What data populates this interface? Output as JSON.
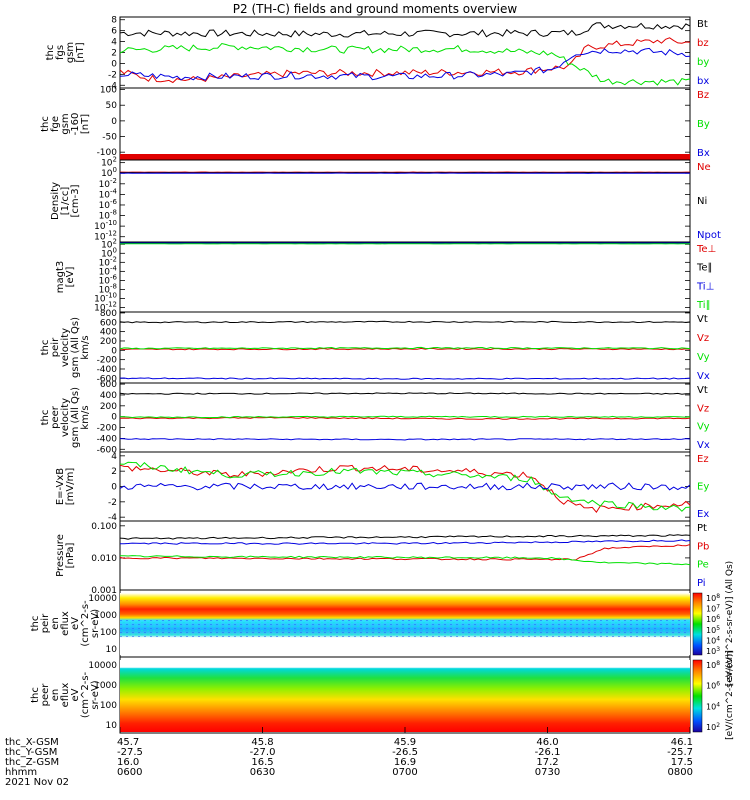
{
  "title": "P2 (TH-C) fields and ground moments overview",
  "colors": {
    "black": "#000000",
    "red": "#e00000",
    "green": "#00e000",
    "blue": "#0000e0"
  },
  "chart_data": [
    {
      "type": "line",
      "ylabel": [
        "thc",
        "fgs",
        "gsm",
        "[nT]"
      ],
      "scale": "linear",
      "yticks": [
        "-4",
        "-2",
        "0",
        "2",
        "4",
        "6",
        "8"
      ],
      "ylim": [
        -4.5,
        8.5
      ],
      "series": [
        {
          "name": "Bt",
          "color": "black",
          "segments": [
            [
              0,
              5.6
            ],
            [
              0.35,
              5.4
            ],
            [
              0.8,
              5.6
            ],
            [
              0.83,
              7
            ],
            [
              1,
              6.9
            ]
          ]
        },
        {
          "name": "bz",
          "color": "red",
          "segments": [
            [
              0,
              -1.5
            ],
            [
              0.05,
              -2.7
            ],
            [
              0.12,
              -3
            ],
            [
              0.3,
              -1.8
            ],
            [
              0.5,
              -1.7
            ],
            [
              0.7,
              -1.5
            ],
            [
              0.79,
              -0.5
            ],
            [
              0.82,
              3
            ],
            [
              0.95,
              4.2
            ],
            [
              1,
              3.8
            ]
          ]
        },
        {
          "name": "by",
          "color": "green",
          "segments": [
            [
              0,
              2.4
            ],
            [
              0.2,
              3.1
            ],
            [
              0.4,
              2.5
            ],
            [
              0.6,
              2.7
            ],
            [
              0.76,
              1.8
            ],
            [
              0.8,
              -0.5
            ],
            [
              0.85,
              -3.2
            ],
            [
              1,
              -3.4
            ]
          ]
        },
        {
          "name": "bx",
          "color": "blue",
          "segments": [
            [
              0,
              -2
            ],
            [
              0.1,
              -2.5
            ],
            [
              0.3,
              -2.2
            ],
            [
              0.5,
              -2.4
            ],
            [
              0.68,
              -2
            ],
            [
              0.76,
              -1
            ],
            [
              0.8,
              2
            ],
            [
              0.86,
              2.5
            ],
            [
              1,
              1.8
            ]
          ]
        }
      ]
    },
    {
      "type": "line",
      "ylabel": [
        "thc",
        "fge",
        "gsm",
        "-160",
        "[nT]"
      ],
      "scale": "linear",
      "yticks": [
        "100",
        "50",
        "0",
        "-50",
        "-100"
      ],
      "ylim": [
        -125,
        105
      ],
      "series": [
        {
          "name": "Bz",
          "color": "red",
          "segments": []
        },
        {
          "name": "By",
          "color": "green",
          "segments": []
        },
        {
          "name": "Bx",
          "color": "blue",
          "segments": []
        }
      ]
    },
    {
      "type": "line",
      "ylabel": [
        "Density",
        "[1/cc]",
        "[cm-3]"
      ],
      "scale": "log",
      "yticks": [
        "10^2",
        "10^0",
        "10^-2",
        "10^-4",
        "10^-6",
        "10^-8",
        "10^-10",
        "10^-12"
      ],
      "ylim": [
        -13,
        2.5
      ],
      "series": [
        {
          "name": "Ne",
          "color": "red",
          "segments": [
            [
              0,
              0.2
            ],
            [
              1,
              0.2
            ]
          ]
        },
        {
          "name": "Ni",
          "color": "black",
          "segments": [
            [
              0,
              0.1
            ],
            [
              1,
              0.1
            ]
          ]
        },
        {
          "name": "Npot",
          "color": "blue",
          "segments": [
            [
              0,
              0
            ],
            [
              1,
              0
            ]
          ]
        }
      ]
    },
    {
      "type": "line",
      "ylabel": [
        "magt3",
        "[eV]"
      ],
      "scale": "log",
      "yticks": [
        "10^2",
        "10^0",
        "10^-2",
        "10^-4",
        "10^-6",
        "10^-8",
        "10^-10",
        "10^-12"
      ],
      "ylim": [
        -13,
        2.5
      ],
      "series": [
        {
          "name": "Te⊥",
          "color": "red",
          "segments": [
            [
              0,
              2.2
            ],
            [
              1,
              2.2
            ]
          ]
        },
        {
          "name": "Te∥",
          "color": "black",
          "segments": [
            [
              0,
              2.3
            ],
            [
              1,
              2.3
            ]
          ]
        },
        {
          "name": "Ti⊥",
          "color": "blue",
          "segments": [
            [
              0,
              2.4
            ],
            [
              1,
              2.4
            ]
          ]
        },
        {
          "name": "Ti∥",
          "color": "green",
          "segments": [
            [
              0,
              2.1
            ],
            [
              1,
              2.1
            ]
          ]
        }
      ]
    },
    {
      "type": "line",
      "ylabel": [
        "thc",
        "peir",
        "velocity",
        "gsm (All Qs)",
        "km/s"
      ],
      "scale": "linear",
      "yticks": [
        "800",
        "600",
        "400",
        "200",
        "0",
        "-200",
        "-400",
        "-600"
      ],
      "ylim": [
        -700,
        820
      ],
      "series": [
        {
          "name": "Vt",
          "color": "black",
          "segments": [
            [
              0,
              600
            ],
            [
              0.5,
              610
            ],
            [
              1,
              605
            ]
          ]
        },
        {
          "name": "Vz",
          "color": "red",
          "segments": [
            [
              0,
              20
            ],
            [
              0.5,
              30
            ],
            [
              1,
              25
            ]
          ]
        },
        {
          "name": "Vy",
          "color": "green",
          "segments": [
            [
              0,
              40
            ],
            [
              0.5,
              50
            ],
            [
              1,
              45
            ]
          ]
        },
        {
          "name": "Vx",
          "color": "blue",
          "segments": [
            [
              0,
              -600
            ],
            [
              0.5,
              -610
            ],
            [
              1,
              -605
            ]
          ]
        }
      ]
    },
    {
      "type": "line",
      "ylabel": [
        "thc",
        "peer",
        "velocity",
        "gsm (All Qs)",
        "km/s"
      ],
      "scale": "linear",
      "yticks": [
        "600",
        "400",
        "200",
        "0",
        "-200",
        "-400",
        "-600"
      ],
      "ylim": [
        -650,
        620
      ],
      "series": [
        {
          "name": "Vt",
          "color": "black",
          "segments": [
            [
              0,
              420
            ],
            [
              0.5,
              430
            ],
            [
              1,
              420
            ]
          ]
        },
        {
          "name": "Vz",
          "color": "red",
          "segments": [
            [
              0,
              -30
            ],
            [
              0.3,
              -20
            ],
            [
              0.6,
              -40
            ],
            [
              1,
              -30
            ]
          ]
        },
        {
          "name": "Vy",
          "color": "green",
          "segments": [
            [
              0,
              -10
            ],
            [
              0.5,
              0
            ],
            [
              1,
              -5
            ]
          ]
        },
        {
          "name": "Vx",
          "color": "blue",
          "segments": [
            [
              0,
              -410
            ],
            [
              0.5,
              -420
            ],
            [
              1,
              -410
            ]
          ]
        }
      ]
    },
    {
      "type": "line",
      "ylabel": [
        "E=-VxB",
        "[mV/m]"
      ],
      "scale": "linear",
      "yticks": [
        "4",
        "2",
        "0",
        "-2",
        "-4"
      ],
      "ylim": [
        -4.5,
        4.5
      ],
      "series": [
        {
          "name": "Ez",
          "color": "red",
          "segments": [
            [
              0,
              2.5
            ],
            [
              0.2,
              1.5
            ],
            [
              0.4,
              2.5
            ],
            [
              0.6,
              2
            ],
            [
              0.72,
              1.5
            ],
            [
              0.78,
              -2
            ],
            [
              0.82,
              -3
            ],
            [
              1,
              -2.2
            ]
          ]
        },
        {
          "name": "Ey",
          "color": "green",
          "segments": [
            [
              0,
              3
            ],
            [
              0.2,
              1.5
            ],
            [
              0.4,
              2
            ],
            [
              0.6,
              1.5
            ],
            [
              0.72,
              1
            ],
            [
              0.76,
              -1
            ],
            [
              0.82,
              -2
            ],
            [
              1,
              -3
            ]
          ]
        },
        {
          "name": "Ex",
          "color": "blue",
          "segments": [
            [
              0,
              0
            ],
            [
              1,
              0
            ]
          ]
        }
      ]
    },
    {
      "type": "line",
      "ylabel": [
        "Pressure",
        "[nPa]"
      ],
      "scale": "log",
      "yticks": [
        "0.100",
        "0.010",
        "0.001"
      ],
      "ylim": [
        -3,
        -0.85
      ],
      "series": [
        {
          "name": "Pt",
          "color": "black",
          "segments": [
            [
              0,
              -1.4
            ],
            [
              0.5,
              -1.35
            ],
            [
              1,
              -1.3
            ]
          ]
        },
        {
          "name": "Pb",
          "color": "red",
          "segments": [
            [
              0,
              -2.0
            ],
            [
              0.8,
              -2.05
            ],
            [
              0.85,
              -1.7
            ],
            [
              1,
              -1.6
            ]
          ]
        },
        {
          "name": "Pe",
          "color": "green",
          "segments": [
            [
              0,
              -1.95
            ],
            [
              0.75,
              -2.0
            ],
            [
              0.85,
              -2.15
            ],
            [
              1,
              -2.2
            ]
          ]
        },
        {
          "name": "Pi",
          "color": "blue",
          "segments": [
            [
              0,
              -1.55
            ],
            [
              0.5,
              -1.55
            ],
            [
              0.8,
              -1.5
            ],
            [
              1,
              -1.45
            ]
          ]
        }
      ]
    },
    {
      "type": "heatmap",
      "ylabel": [
        "thc",
        "peir",
        "en",
        "eflux",
        "eV",
        "(cm^2-s-",
        "sr-eV)"
      ],
      "yticks": [
        "10000",
        "1000",
        "100",
        "10"
      ],
      "colorbar": {
        "ticks": [
          "10^8",
          "10^7",
          "10^6",
          "10^5",
          "10^4",
          "10^3"
        ],
        "label": "[eV/(cm^2-s-sr-eV)] (All Qs)"
      }
    },
    {
      "type": "heatmap",
      "ylabel": [
        "thc",
        "peer",
        "en",
        "eflux",
        "eV",
        "(cm^2-s-",
        "sr-eV)"
      ],
      "yticks": [
        "10000",
        "1000",
        "100",
        "10"
      ],
      "colorbar": {
        "ticks": [
          "10^8",
          "10^6",
          "10^4",
          "10^2"
        ],
        "label": "[eV/(cm^2-s-sr-eV)]"
      }
    }
  ],
  "xaxis": {
    "rows": [
      {
        "label": "thc_X-GSM",
        "values": [
          "45.7",
          "45.8",
          "45.9",
          "46.0",
          "46.1"
        ]
      },
      {
        "label": "thc_Y-GSM",
        "values": [
          "-27.5",
          "-27.0",
          "-26.5",
          "-26.1",
          "-25.7"
        ]
      },
      {
        "label": "thc_Z-GSM",
        "values": [
          "16.0",
          "16.5",
          "16.9",
          "17.2",
          "17.5"
        ]
      },
      {
        "label": "hhmm",
        "values": [
          "0600",
          "0630",
          "0700",
          "0730",
          "0800"
        ]
      }
    ],
    "date": "2021 Nov 02"
  }
}
